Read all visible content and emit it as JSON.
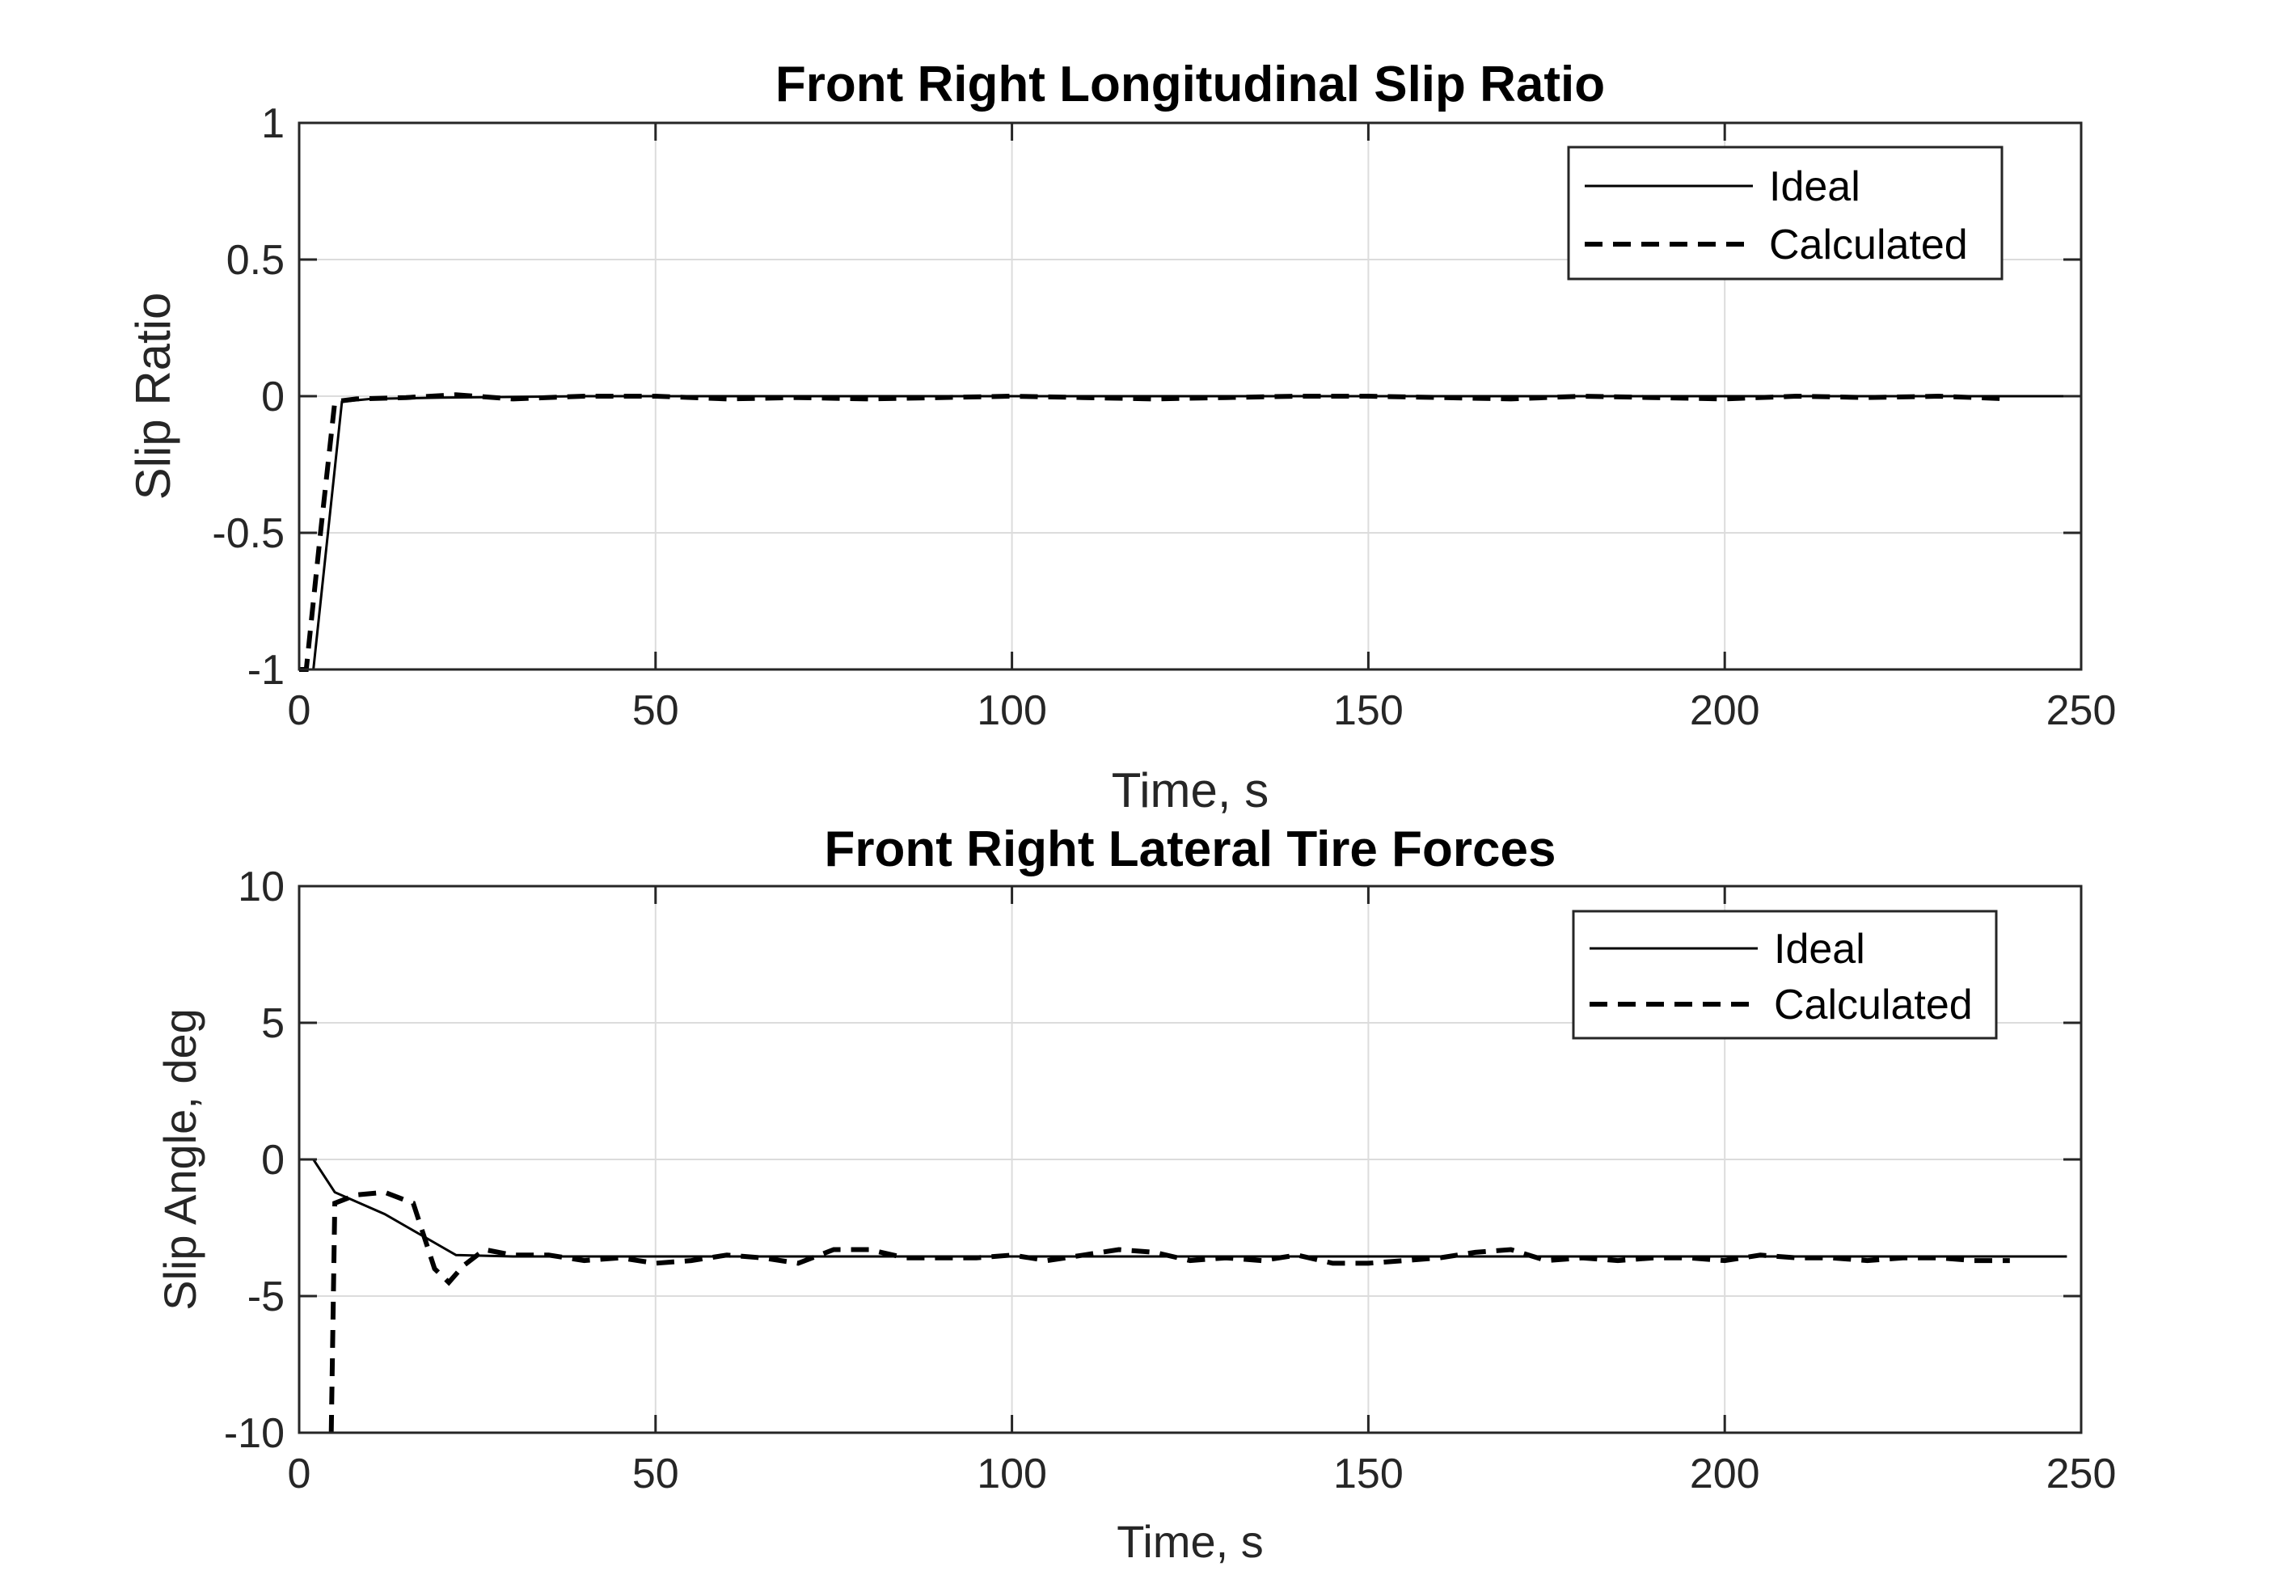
{
  "chart_data": [
    {
      "type": "line",
      "title": "Front Right Longitudinal Slip Ratio",
      "xlabel": "Time, s",
      "ylabel": "Slip Ratio",
      "xlim": [
        0,
        250
      ],
      "ylim": [
        -1,
        1
      ],
      "xticks": [
        0,
        50,
        100,
        150,
        200,
        250
      ],
      "yticks": [
        -1,
        -0.5,
        0,
        0.5,
        1
      ],
      "grid": true,
      "legend_position": "top-right",
      "series": [
        {
          "name": "Ideal",
          "style": "solid",
          "x": [
            0,
            2,
            6,
            10,
            20,
            40,
            60,
            80,
            100,
            120,
            140,
            160,
            180,
            200,
            220,
            240,
            248
          ],
          "y": [
            -1,
            -1,
            -0.02,
            -0.01,
            -0.005,
            0,
            0,
            0,
            0,
            0,
            0,
            0,
            0,
            0,
            0,
            0,
            0
          ]
        },
        {
          "name": "Calculated",
          "style": "dashed",
          "x": [
            0,
            1,
            3,
            5,
            8,
            15,
            22,
            30,
            40,
            50,
            60,
            70,
            80,
            90,
            100,
            110,
            120,
            130,
            140,
            150,
            160,
            170,
            180,
            190,
            200,
            210,
            220,
            230,
            240
          ],
          "y": [
            -1,
            -1,
            -0.5,
            -0.02,
            -0.01,
            -0.005,
            0.005,
            -0.01,
            0,
            0,
            -0.01,
            -0.005,
            -0.01,
            -0.005,
            0,
            -0.005,
            -0.01,
            -0.005,
            0,
            0,
            -0.005,
            -0.01,
            0,
            -0.005,
            -0.01,
            0,
            -0.005,
            0,
            -0.01
          ]
        }
      ]
    },
    {
      "type": "line",
      "title": "Front Right Lateral Tire Forces",
      "xlabel": "Time, s",
      "ylabel": "Slip Angle, deg",
      "xlim": [
        0,
        250
      ],
      "ylim": [
        -10,
        10
      ],
      "xticks": [
        0,
        50,
        100,
        150,
        200,
        250
      ],
      "yticks": [
        -10,
        -5,
        0,
        5,
        10
      ],
      "grid": true,
      "legend_position": "top-right",
      "series": [
        {
          "name": "Ideal",
          "style": "solid",
          "x": [
            0,
            2,
            5,
            12,
            18,
            22,
            30,
            50,
            100,
            150,
            200,
            248
          ],
          "y": [
            0,
            0,
            -1.2,
            -2.0,
            -2.9,
            -3.5,
            -3.55,
            -3.55,
            -3.55,
            -3.55,
            -3.55,
            -3.55
          ]
        },
        {
          "name": "Calculated",
          "style": "dashed",
          "x": [
            4.5,
            5,
            6,
            8,
            12,
            16,
            19,
            21,
            23,
            26,
            30,
            35,
            40,
            45,
            50,
            55,
            60,
            65,
            70,
            75,
            80,
            85,
            90,
            95,
            100,
            105,
            110,
            115,
            120,
            125,
            130,
            135,
            140,
            145,
            150,
            155,
            160,
            165,
            170,
            175,
            180,
            185,
            190,
            195,
            200,
            205,
            210,
            215,
            220,
            225,
            230,
            235,
            240
          ],
          "y": [
            -10,
            -1.6,
            -1.5,
            -1.3,
            -1.2,
            -1.6,
            -4.0,
            -4.5,
            -3.9,
            -3.3,
            -3.5,
            -3.5,
            -3.7,
            -3.6,
            -3.8,
            -3.7,
            -3.5,
            -3.6,
            -3.8,
            -3.3,
            -3.3,
            -3.6,
            -3.6,
            -3.6,
            -3.5,
            -3.7,
            -3.5,
            -3.3,
            -3.4,
            -3.7,
            -3.6,
            -3.7,
            -3.5,
            -3.8,
            -3.8,
            -3.7,
            -3.6,
            -3.4,
            -3.3,
            -3.7,
            -3.6,
            -3.7,
            -3.6,
            -3.6,
            -3.7,
            -3.5,
            -3.6,
            -3.6,
            -3.7,
            -3.6,
            -3.6,
            -3.7,
            -3.7
          ]
        }
      ]
    }
  ]
}
